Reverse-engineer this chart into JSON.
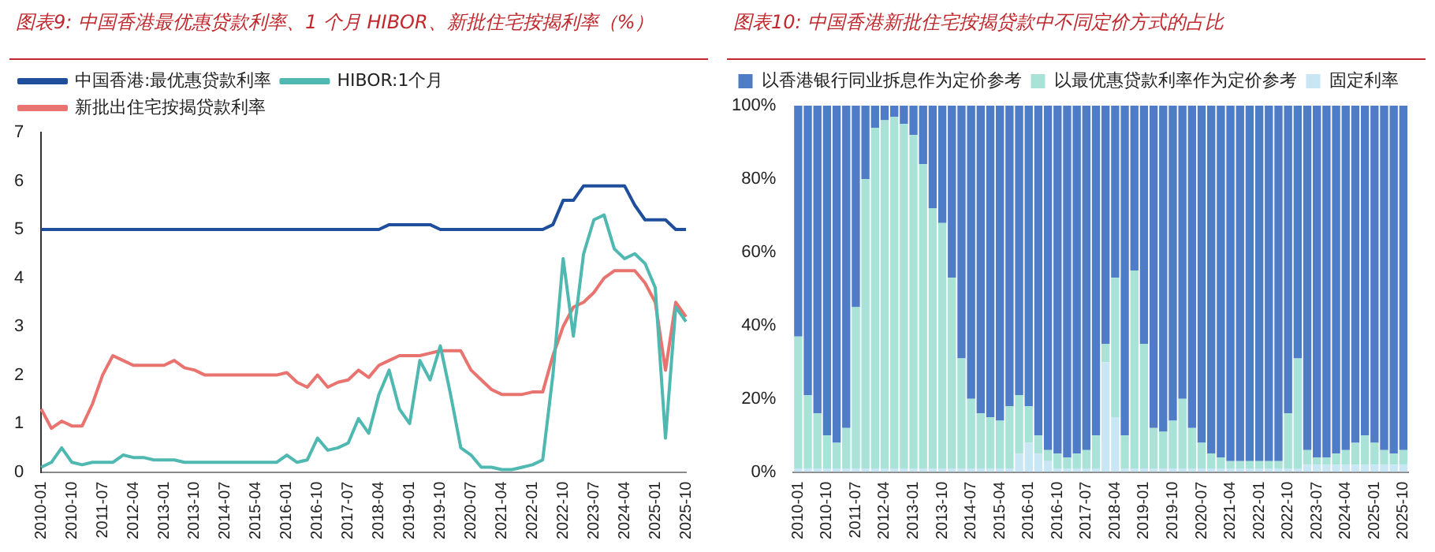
{
  "chart_data": [
    {
      "type": "line",
      "title": "图表9:  中国香港最优惠贷款利率、1 个月 HIBOR、新批住宅按揭利率（%）",
      "marker": "none",
      "legend": "top left",
      "grid": false,
      "categories": [
        "2010-01",
        null,
        null,
        "2010-10",
        null,
        null,
        "2011-07",
        null,
        null,
        "2012-04",
        null,
        null,
        "2013-01",
        null,
        null,
        "2013-10",
        null,
        null,
        "2014-07",
        null,
        null,
        "2015-04",
        null,
        null,
        "2016-01",
        null,
        null,
        "2016-10",
        null,
        null,
        "2017-07",
        null,
        null,
        "2018-04",
        null,
        null,
        "2019-01",
        null,
        null,
        "2019-10",
        null,
        null,
        "2020-07",
        null,
        null,
        "2021-04",
        null,
        null,
        "2022-01",
        null,
        null,
        "2022-10",
        null,
        null,
        "2023-07",
        null,
        null,
        "2024-04",
        null,
        null,
        "2025-01",
        null,
        null,
        "2025-10"
      ],
      "ylim": [
        0,
        7
      ],
      "yticks": [
        0,
        1,
        2,
        3,
        4,
        5,
        6,
        7
      ],
      "series": [
        {
          "name": "中国香港:最优惠贷款利率",
          "color": "#1f4e9c",
          "values": [
            5,
            5,
            5,
            5,
            5,
            5,
            5,
            5,
            5,
            5,
            5,
            5,
            5,
            5,
            5,
            5,
            5,
            5,
            5,
            5,
            5,
            5,
            5,
            5,
            5,
            5,
            5,
            5,
            5,
            5,
            5,
            5,
            5,
            5,
            5.1,
            5.1,
            5.1,
            5.1,
            5.1,
            5,
            5,
            5,
            5,
            5,
            5,
            5,
            5,
            5,
            5,
            5,
            5.1,
            5.6,
            5.6,
            5.9,
            5.9,
            5.9,
            5.9,
            5.9,
            5.5,
            5.2,
            5.2,
            5.2,
            5,
            5
          ]
        },
        {
          "name": "HIBOR:1个月",
          "color": "#4fb8b0",
          "values": [
            0.1,
            0.2,
            0.5,
            0.2,
            0.15,
            0.2,
            0.2,
            0.2,
            0.35,
            0.3,
            0.3,
            0.25,
            0.25,
            0.25,
            0.2,
            0.2,
            0.2,
            0.2,
            0.2,
            0.2,
            0.2,
            0.2,
            0.2,
            0.2,
            0.35,
            0.2,
            0.25,
            0.7,
            0.45,
            0.5,
            0.6,
            1.1,
            0.8,
            1.6,
            2.1,
            1.3,
            1,
            2.3,
            1.9,
            2.6,
            1.6,
            0.5,
            0.35,
            0.1,
            0.1,
            0.05,
            0.05,
            0.1,
            0.15,
            0.25,
            2,
            4.4,
            2.8,
            4.5,
            5.2,
            5.3,
            4.6,
            4.4,
            4.5,
            4.3,
            3.8,
            0.7,
            3.4,
            3.1
          ]
        },
        {
          "name": "新批出住宅按揭贷款利率",
          "color": "#e8736f",
          "values": [
            1.3,
            0.9,
            1.05,
            0.95,
            0.95,
            1.4,
            2,
            2.4,
            2.3,
            2.2,
            2.2,
            2.2,
            2.2,
            2.3,
            2.15,
            2.1,
            2,
            2,
            2,
            2,
            2,
            2,
            2,
            2,
            2.05,
            1.85,
            1.75,
            2,
            1.75,
            1.85,
            1.9,
            2.1,
            1.95,
            2.2,
            2.3,
            2.4,
            2.4,
            2.4,
            2.45,
            2.5,
            2.5,
            2.5,
            2.1,
            1.9,
            1.7,
            1.6,
            1.6,
            1.6,
            1.65,
            1.65,
            2.4,
            3,
            3.4,
            3.5,
            3.7,
            4,
            4.15,
            4.15,
            4.15,
            3.9,
            3.5,
            2.1,
            3.5,
            3.2
          ]
        }
      ]
    },
    {
      "type": "bar",
      "stacked": true,
      "title": "图表10:  中国香港新批住宅按揭贷款中不同定价方式的占比",
      "legend": "top",
      "grid": false,
      "categories": [
        "2010-01",
        null,
        null,
        "2010-10",
        null,
        null,
        "2011-07",
        null,
        null,
        "2012-04",
        null,
        null,
        "2013-01",
        null,
        null,
        "2013-10",
        null,
        null,
        "2014-07",
        null,
        null,
        "2015-04",
        null,
        null,
        "2016-01",
        null,
        null,
        "2016-10",
        null,
        null,
        "2017-07",
        null,
        null,
        "2018-04",
        null,
        null,
        "2019-01",
        null,
        null,
        "2019-10",
        null,
        null,
        "2020-07",
        null,
        null,
        "2021-04",
        null,
        null,
        "2022-01",
        null,
        null,
        "2022-10",
        null,
        null,
        "2023-07",
        null,
        null,
        "2024-04",
        null,
        null,
        "2025-01",
        null,
        null,
        "2025-10"
      ],
      "ylim": [
        0,
        100
      ],
      "yticks": [
        {
          "value": 0,
          "label": "0%"
        },
        {
          "value": 20,
          "label": "20%"
        },
        {
          "value": 40,
          "label": "40%"
        },
        {
          "value": 60,
          "label": "60%"
        },
        {
          "value": 80,
          "label": "80%"
        },
        {
          "value": 100,
          "label": "100%"
        }
      ],
      "series": [
        {
          "name": "固定利率",
          "color": "#c9e6f5",
          "values": [
            1,
            1,
            1,
            1,
            1,
            1,
            1,
            1,
            1,
            1,
            1,
            1,
            1,
            1,
            1,
            1,
            1,
            1,
            1,
            1,
            1,
            1,
            1,
            5,
            8,
            5,
            3,
            1,
            1,
            1,
            1,
            1,
            30,
            15,
            1,
            1,
            1,
            1,
            1,
            1,
            1,
            1,
            1,
            1,
            1,
            1,
            1,
            1,
            1,
            1,
            1,
            1,
            1,
            2,
            2,
            2,
            2,
            2,
            2,
            2,
            2,
            2,
            2,
            2
          ]
        },
        {
          "name": "以最优惠贷款利率作为定价参考",
          "color": "#a9e2d6",
          "values": [
            36,
            20,
            15,
            9,
            7,
            11,
            44,
            79,
            93,
            95,
            96,
            94,
            91,
            83,
            71,
            67,
            52,
            30,
            19,
            15,
            14,
            13,
            17,
            16,
            10,
            5,
            3,
            4,
            3,
            4,
            5,
            9,
            5,
            38,
            9,
            54,
            34,
            11,
            10,
            13,
            19,
            11,
            7,
            4,
            3,
            2,
            2,
            2,
            2,
            2,
            2,
            15,
            30,
            4,
            2,
            2,
            3,
            4,
            6,
            8,
            6,
            4,
            3,
            4
          ]
        },
        {
          "name": "以香港银行同业拆息作为定价参考",
          "color": "#4f7cc6",
          "values": [
            63,
            79,
            84,
            90,
            92,
            88,
            55,
            20,
            6,
            4,
            3,
            5,
            8,
            16,
            28,
            32,
            47,
            69,
            80,
            84,
            85,
            86,
            82,
            79,
            82,
            90,
            94,
            95,
            96,
            95,
            94,
            90,
            65,
            47,
            90,
            45,
            65,
            88,
            89,
            86,
            80,
            88,
            92,
            95,
            96,
            97,
            97,
            97,
            97,
            97,
            97,
            84,
            69,
            94,
            96,
            96,
            95,
            94,
            92,
            90,
            92,
            94,
            95,
            94
          ]
        }
      ]
    }
  ]
}
